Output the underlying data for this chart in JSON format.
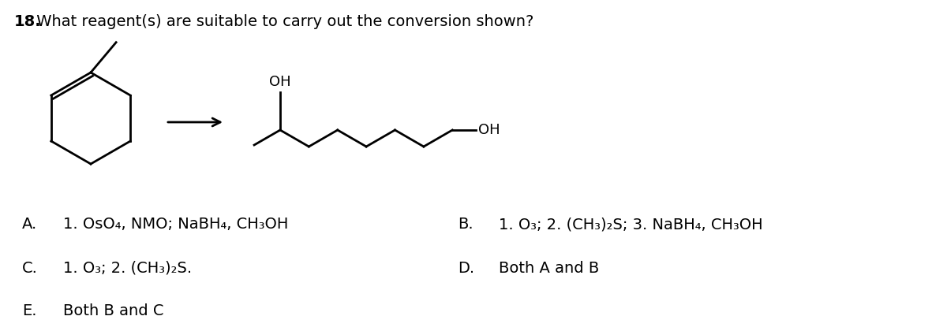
{
  "title_num": "18.",
  "title_text": " What reagent(s) are suitable to carry out the conversion shown?",
  "title_fontsize": 14,
  "bg_color": "#ffffff",
  "text_color": "#000000",
  "options": {
    "A": "1. OsO₄, NMO; NaBH₄, CH₃OH",
    "B": "1. O₃; 2. (CH₃)₂S; 3. NaBH₄, CH₃OH",
    "C": "1. O₃; 2. (CH₃)₂S.",
    "D": "Both A and B",
    "E": "Both B and C"
  },
  "label_fontsize": 14,
  "figsize": [
    12.0,
    4.2
  ],
  "dpi": 100
}
